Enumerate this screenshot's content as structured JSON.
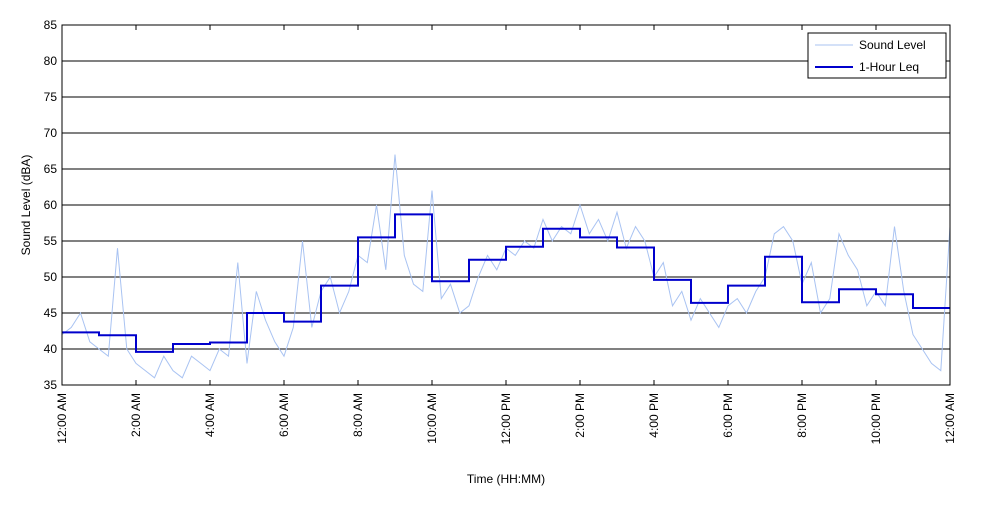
{
  "chart_data": {
    "type": "line",
    "xlabel": "Time (HH:MM)",
    "ylabel": "Sound Level (dBA)",
    "xlim": [
      0,
      24
    ],
    "ylim": [
      35,
      85
    ],
    "yticks": [
      35,
      40,
      45,
      50,
      55,
      60,
      65,
      70,
      75,
      80,
      85
    ],
    "x_tick_labels": [
      "12:00 AM",
      "2:00 AM",
      "4:00 AM",
      "6:00 AM",
      "8:00 AM",
      "10:00 AM",
      "12:00 PM",
      "2:00 PM",
      "4:00 PM",
      "6:00 PM",
      "8:00 PM",
      "10:00 PM",
      "12:00 AM"
    ],
    "grid": "horizontal",
    "legend_position": "top-right",
    "legend": [
      "Sound Level",
      "1-Hour Leq"
    ],
    "colors": {
      "sound_level": "#a9c3f2",
      "leq": "#0000cc",
      "grid": "#000000"
    },
    "series": [
      {
        "name": "Sound Level",
        "x_hours": [
          0.0,
          0.25,
          0.5,
          0.75,
          1.0,
          1.25,
          1.5,
          1.75,
          2.0,
          2.25,
          2.5,
          2.75,
          3.0,
          3.25,
          3.5,
          3.75,
          4.0,
          4.25,
          4.5,
          4.75,
          5.0,
          5.25,
          5.5,
          5.75,
          6.0,
          6.25,
          6.5,
          6.75,
          7.0,
          7.25,
          7.5,
          7.75,
          8.0,
          8.25,
          8.5,
          8.75,
          9.0,
          9.25,
          9.5,
          9.75,
          10.0,
          10.25,
          10.5,
          10.75,
          11.0,
          11.25,
          11.5,
          11.75,
          12.0,
          12.25,
          12.5,
          12.75,
          13.0,
          13.25,
          13.5,
          13.75,
          14.0,
          14.25,
          14.5,
          14.75,
          15.0,
          15.25,
          15.5,
          15.75,
          16.0,
          16.25,
          16.5,
          16.75,
          17.0,
          17.25,
          17.5,
          17.75,
          18.0,
          18.25,
          18.5,
          18.75,
          19.0,
          19.25,
          19.5,
          19.75,
          20.0,
          20.25,
          20.5,
          20.75,
          21.0,
          21.25,
          21.5,
          21.75,
          22.0,
          22.25,
          22.5,
          22.75,
          23.0,
          23.25,
          23.5,
          23.75,
          24.0
        ],
        "values": [
          42,
          43,
          45,
          41,
          40,
          39,
          54,
          40,
          38,
          37,
          36,
          39,
          37,
          36,
          39,
          38,
          37,
          40,
          39,
          52,
          38,
          48,
          44,
          41,
          39,
          43,
          55,
          43,
          48,
          50,
          45,
          48,
          53,
          52,
          60,
          51,
          67,
          53,
          49,
          48,
          62,
          47,
          49,
          45,
          46,
          50,
          53,
          51,
          54,
          53,
          55,
          54,
          58,
          55,
          57,
          56,
          60,
          56,
          58,
          55,
          59,
          54,
          57,
          55,
          50,
          52,
          46,
          48,
          44,
          47,
          45,
          43,
          46,
          47,
          45,
          48,
          50,
          56,
          57,
          55,
          49,
          52,
          45,
          47,
          56,
          53,
          51,
          46,
          48,
          46,
          57,
          48,
          42,
          40,
          38,
          37,
          57
        ]
      },
      {
        "name": "1-Hour Leq",
        "step": true,
        "hours": [
          0,
          1,
          2,
          3,
          4,
          5,
          6,
          7,
          8,
          9,
          10,
          11,
          12,
          13,
          14,
          15,
          16,
          17,
          18,
          19,
          20,
          21,
          22,
          23
        ],
        "values": [
          42.3,
          41.9,
          39.6,
          40.7,
          40.9,
          45.0,
          43.8,
          48.8,
          55.5,
          58.7,
          49.4,
          52.4,
          54.2,
          56.7,
          55.5,
          54.1,
          49.6,
          46.4,
          48.8,
          52.8,
          46.5,
          48.3,
          47.6,
          45.7
        ]
      }
    ]
  }
}
